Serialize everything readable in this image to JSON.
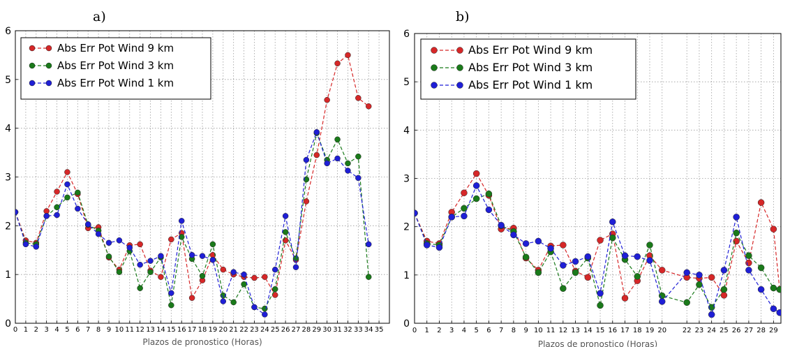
{
  "chart_data": [
    {
      "panel_label": "a)",
      "type": "line",
      "xlabel": "Plazos de pronostico (Horas)",
      "ylabel": "",
      "xlim": [
        0,
        36
      ],
      "ylim": [
        0,
        6
      ],
      "x_ticks": [
        0,
        1,
        2,
        3,
        4,
        5,
        6,
        7,
        8,
        9,
        10,
        11,
        12,
        13,
        14,
        15,
        16,
        17,
        18,
        19,
        20,
        21,
        22,
        23,
        24,
        25,
        26,
        27,
        28,
        29,
        30,
        31,
        32,
        33,
        34,
        35
      ],
      "y_ticks": [
        0,
        1,
        2,
        3,
        4,
        5,
        6
      ],
      "grid": true,
      "legend_position": "upper-left",
      "x": [
        0,
        1,
        2,
        3,
        4,
        5,
        6,
        7,
        8,
        9,
        10,
        11,
        12,
        13,
        14,
        15,
        16,
        17,
        18,
        19,
        20,
        21,
        22,
        23,
        24,
        25,
        26,
        27,
        28,
        29,
        30,
        31,
        32,
        33,
        34
      ],
      "series": [
        {
          "name": "Abs Err Pot Wind 9 km",
          "color": "#d62728",
          "values": [
            2.28,
            1.7,
            1.65,
            2.3,
            2.7,
            3.1,
            2.65,
            1.95,
            1.97,
            1.35,
            1.1,
            1.6,
            1.62,
            1.08,
            0.95,
            1.72,
            1.85,
            0.52,
            0.88,
            1.4,
            1.1,
            1.0,
            0.95,
            0.93,
            0.95,
            0.58,
            1.7,
            1.3,
            2.5,
            3.45,
            4.58,
            5.33,
            5.5,
            4.62,
            4.45
          ]
        },
        {
          "name": "Abs Err Pot Wind 3 km",
          "color": "#1a7a1a",
          "values": [
            2.28,
            1.65,
            1.62,
            2.2,
            2.38,
            2.58,
            2.68,
            2.02,
            1.9,
            1.37,
            1.05,
            1.48,
            0.72,
            1.05,
            1.35,
            0.37,
            1.77,
            1.32,
            0.97,
            1.62,
            0.57,
            0.43,
            0.8,
            0.33,
            0.3,
            0.7,
            1.87,
            1.33,
            2.95,
            3.9,
            3.35,
            3.77,
            3.28,
            3.42,
            0.95
          ]
        },
        {
          "name": "Abs Err Pot Wind 1 km",
          "color": "#1f1fd6",
          "values": [
            2.28,
            1.62,
            1.57,
            2.2,
            2.22,
            2.85,
            2.35,
            2.03,
            1.83,
            1.65,
            1.7,
            1.55,
            1.2,
            1.28,
            1.38,
            0.62,
            2.1,
            1.4,
            1.38,
            1.3,
            0.45,
            1.05,
            1.0,
            0.33,
            0.18,
            1.1,
            2.2,
            1.15,
            3.35,
            3.92,
            3.28,
            3.38,
            3.13,
            2.98,
            1.62
          ]
        }
      ]
    },
    {
      "panel_label": "b)",
      "type": "line",
      "xlabel": "Plazos de pronostico (Horas)",
      "ylabel": "",
      "xlim": [
        0,
        29.6
      ],
      "ylim": [
        0,
        6
      ],
      "x_ticks": [
        0,
        1,
        2,
        3,
        4,
        5,
        6,
        7,
        8,
        9,
        10,
        11,
        12,
        13,
        14,
        15,
        16,
        17,
        18,
        19,
        20,
        22,
        23,
        24,
        25,
        26,
        27,
        28,
        29
      ],
      "y_ticks": [
        0,
        1,
        2,
        3,
        4,
        5,
        6
      ],
      "grid": true,
      "legend_position": "upper-left",
      "x": [
        0,
        1,
        2,
        3,
        4,
        5,
        6,
        7,
        8,
        9,
        10,
        11,
        12,
        13,
        14,
        15,
        16,
        17,
        18,
        19,
        20,
        22,
        23,
        24,
        25,
        26,
        27,
        28,
        29,
        29.5
      ],
      "series": [
        {
          "name": "Abs Err Pot Wind 9 km",
          "color": "#d62728",
          "values": [
            2.28,
            1.7,
            1.65,
            2.3,
            2.7,
            3.1,
            2.65,
            1.95,
            1.97,
            1.35,
            1.1,
            1.6,
            1.62,
            1.08,
            0.95,
            1.72,
            1.85,
            0.52,
            0.88,
            1.4,
            1.1,
            0.95,
            0.93,
            0.95,
            0.58,
            1.7,
            1.25,
            2.5,
            1.95,
            0.7
          ]
        },
        {
          "name": "Abs Err Pot Wind 3 km",
          "color": "#1a7a1a",
          "values": [
            2.28,
            1.65,
            1.62,
            2.2,
            2.38,
            2.58,
            2.68,
            2.02,
            1.9,
            1.37,
            1.05,
            1.48,
            0.72,
            1.05,
            1.35,
            0.37,
            1.77,
            1.32,
            0.97,
            1.62,
            0.57,
            0.43,
            0.8,
            0.33,
            0.7,
            1.87,
            1.4,
            1.15,
            0.73,
            0.7
          ]
        },
        {
          "name": "Abs Err Pot Wind 1 km",
          "color": "#1f1fd6",
          "values": [
            2.28,
            1.62,
            1.57,
            2.2,
            2.22,
            2.85,
            2.35,
            2.03,
            1.83,
            1.65,
            1.7,
            1.55,
            1.2,
            1.28,
            1.38,
            0.62,
            2.1,
            1.4,
            1.38,
            1.3,
            0.45,
            1.05,
            1.0,
            0.18,
            1.1,
            2.2,
            1.1,
            0.7,
            0.3,
            0.22
          ]
        }
      ]
    }
  ]
}
